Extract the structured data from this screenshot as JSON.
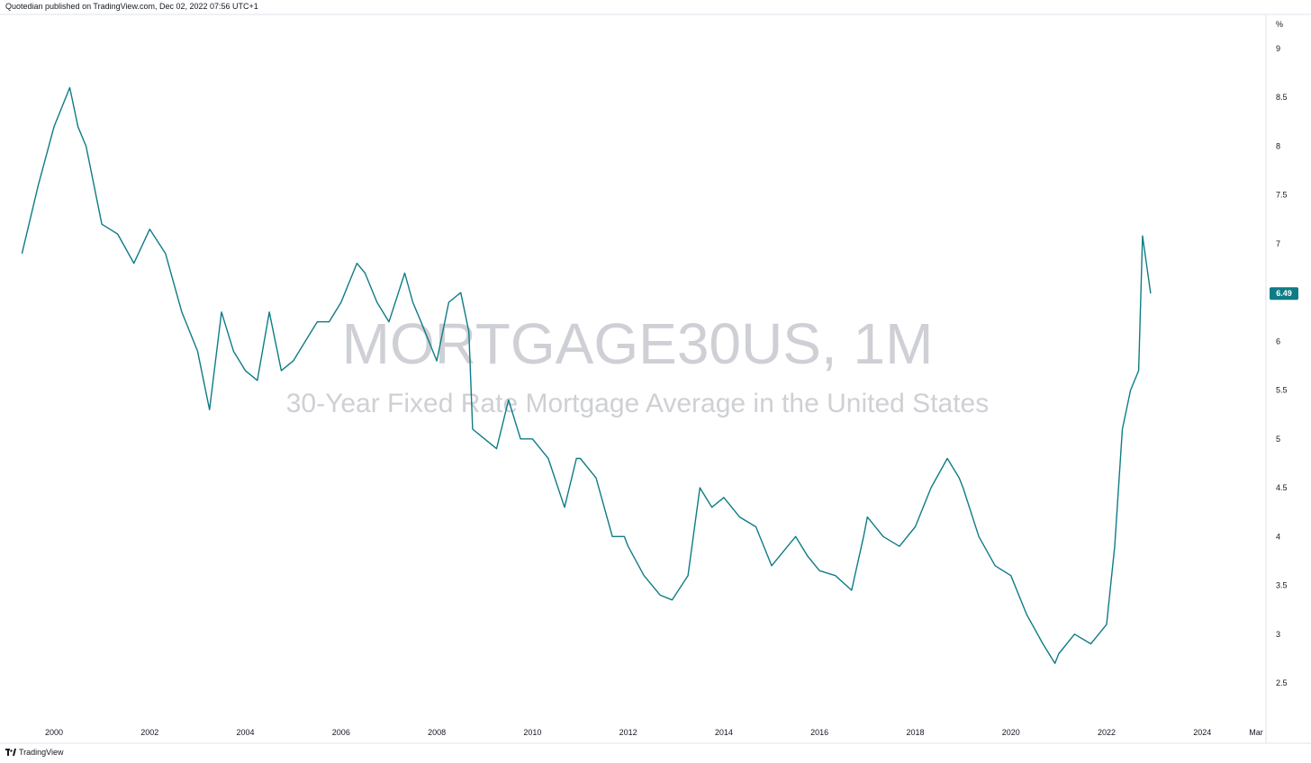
{
  "header": {
    "text": "Quotedian published on TradingView.com, Dec 02, 2022 07:56 UTC+1"
  },
  "footer": {
    "brand": "TradingView",
    "logo_icon": "tradingview-logo-icon"
  },
  "watermark": {
    "symbol": "MORTGAGE30US, 1M",
    "description": "30-Year Fixed Rate Mortgage Average in the United States"
  },
  "colors": {
    "line": "#0e7c86",
    "badge": "#0e7c86",
    "watermark": "#c9cbd1",
    "border": "#e0e3eb"
  },
  "chart_data": {
    "type": "line",
    "series": [
      {
        "last_value_label": "6.49",
        "x": [
          1999.33,
          1999.67,
          2000.0,
          2000.33,
          2000.5,
          2000.67,
          2001.0,
          2001.33,
          2001.67,
          2002.0,
          2002.33,
          2002.67,
          2003.0,
          2003.25,
          2003.5,
          2003.75,
          2004.0,
          2004.25,
          2004.5,
          2004.75,
          2005.0,
          2005.5,
          2005.75,
          2006.0,
          2006.33,
          2006.5,
          2006.75,
          2007.0,
          2007.33,
          2007.5,
          2007.67,
          2008.0,
          2008.25,
          2008.5,
          2008.67,
          2008.75,
          2009.0,
          2009.25,
          2009.5,
          2009.75,
          2010.0,
          2010.33,
          2010.67,
          2010.92,
          2011.0,
          2011.33,
          2011.67,
          2011.92,
          2012.0,
          2012.33,
          2012.67,
          2012.92,
          2013.25,
          2013.5,
          2013.75,
          2014.0,
          2014.33,
          2014.67,
          2015.0,
          2015.25,
          2015.5,
          2015.75,
          2016.0,
          2016.33,
          2016.67,
          2016.92,
          2017.0,
          2017.33,
          2017.67,
          2018.0,
          2018.33,
          2018.67,
          2018.92,
          2019.0,
          2019.33,
          2019.67,
          2020.0,
          2020.33,
          2020.67,
          2020.92,
          2021.0,
          2021.33,
          2021.67,
          2022.0,
          2022.17,
          2022.33,
          2022.5,
          2022.67,
          2022.75,
          2022.92
        ],
        "y": [
          6.9,
          7.6,
          8.2,
          8.6,
          8.2,
          8.0,
          7.2,
          7.1,
          6.8,
          7.15,
          6.9,
          6.3,
          5.9,
          5.3,
          6.3,
          5.9,
          5.7,
          5.6,
          6.3,
          5.7,
          5.8,
          6.2,
          6.2,
          6.4,
          6.8,
          6.7,
          6.4,
          6.2,
          6.7,
          6.4,
          6.2,
          5.8,
          6.4,
          6.5,
          6.1,
          5.1,
          5.0,
          4.9,
          5.4,
          5.0,
          5.0,
          4.8,
          4.3,
          4.8,
          4.8,
          4.6,
          4.0,
          4.0,
          3.9,
          3.6,
          3.4,
          3.35,
          3.6,
          4.5,
          4.3,
          4.4,
          4.2,
          4.1,
          3.7,
          3.85,
          4.0,
          3.8,
          3.65,
          3.6,
          3.45,
          4.0,
          4.2,
          4.0,
          3.9,
          4.1,
          4.5,
          4.8,
          4.6,
          4.5,
          4.0,
          3.7,
          3.6,
          3.2,
          2.9,
          2.7,
          2.8,
          3.0,
          2.9,
          3.1,
          3.9,
          5.1,
          5.5,
          5.7,
          7.08,
          6.49
        ]
      }
    ],
    "x_ticks": [
      "2000",
      "2002",
      "2004",
      "2006",
      "2008",
      "2010",
      "2012",
      "2014",
      "2016",
      "2018",
      "2020",
      "2022",
      "2024",
      "Mar"
    ],
    "y_ticks": [
      "2.5",
      "3",
      "3.5",
      "4",
      "4.5",
      "5",
      "5.5",
      "6",
      "6.5",
      "7",
      "7.5",
      "8",
      "8.5",
      "9"
    ],
    "y_unit": "%",
    "ylim": [
      2.2,
      9.3
    ],
    "xlim": [
      1999.0,
      2025.5
    ],
    "grid": false,
    "legend": "none"
  }
}
